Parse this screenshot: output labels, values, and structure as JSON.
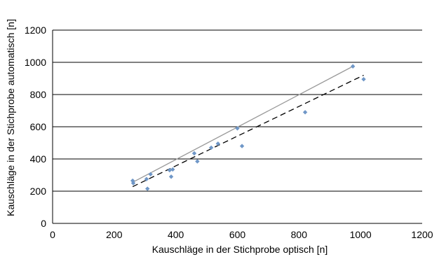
{
  "chart_data": {
    "type": "scatter",
    "title": "",
    "xlabel": "Kauschläge in der Stichprobe optisch [n]",
    "ylabel": "Kauschläge in der Stichprobe automatisch [n]",
    "xlim": [
      0,
      1200
    ],
    "ylim": [
      0,
      1200
    ],
    "xticks": [
      "0",
      "200",
      "400",
      "600",
      "800",
      "1000",
      "1200"
    ],
    "yticks": [
      "0",
      "200",
      "400",
      "600",
      "800",
      "1000",
      "1200"
    ],
    "grid": "horizontal",
    "legend": "none",
    "series": [
      {
        "marker": "diamond",
        "color": "#6f97c7",
        "points": [
          [
            260,
            265
          ],
          [
            262,
            250
          ],
          [
            305,
            275
          ],
          [
            308,
            215
          ],
          [
            318,
            305
          ],
          [
            380,
            330
          ],
          [
            385,
            290
          ],
          [
            390,
            335
          ],
          [
            460,
            435
          ],
          [
            470,
            385
          ],
          [
            515,
            470
          ],
          [
            537,
            495
          ],
          [
            600,
            590
          ],
          [
            615,
            480
          ],
          [
            820,
            690
          ],
          [
            975,
            975
          ],
          [
            1010,
            895
          ]
        ]
      }
    ],
    "lines": [
      {
        "style": "solid",
        "color": "#999999",
        "from": [
          260,
          255
        ],
        "to": [
          975,
          975
        ]
      },
      {
        "style": "dashed",
        "color": "#000000",
        "from": [
          260,
          228
        ],
        "to": [
          1010,
          920
        ]
      }
    ]
  }
}
